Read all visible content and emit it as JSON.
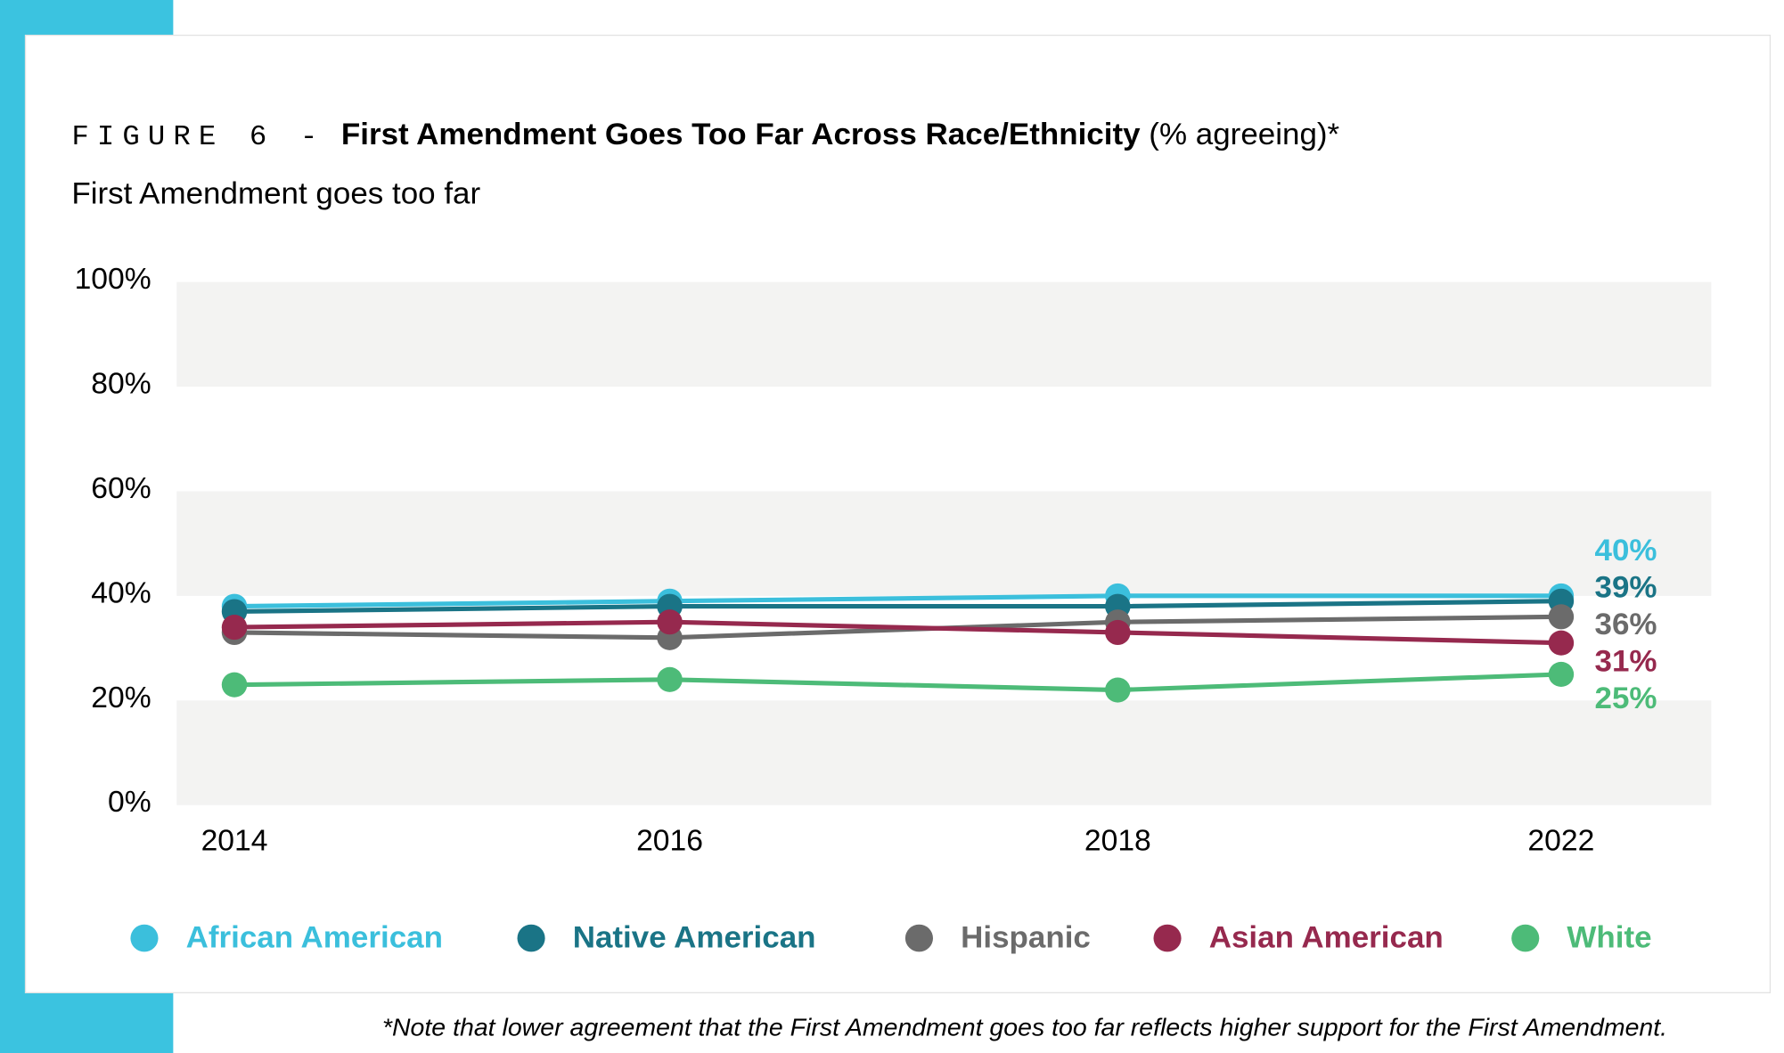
{
  "chart_data": {
    "type": "line",
    "figure_label": "FIGURE 6 -",
    "title": "First Amendment Goes Too Far Across Race/Ethnicity",
    "title_suffix": "(% agreeing)*",
    "subtitle": "First Amendment goes too far",
    "note": "*Note that lower agreement that the First Amendment goes too far reflects higher support for the First Amendment.",
    "categories": [
      "2014",
      "2016",
      "2018",
      "2022"
    ],
    "ylim": [
      0,
      100
    ],
    "yticks": [
      {
        "value": 0,
        "label": "0%"
      },
      {
        "value": 20,
        "label": "20%"
      },
      {
        "value": 40,
        "label": "40%"
      },
      {
        "value": 60,
        "label": "60%"
      },
      {
        "value": 80,
        "label": "80%"
      },
      {
        "value": 100,
        "label": "100%"
      }
    ],
    "series": [
      {
        "name": "African American",
        "color": "#3bbfdc",
        "values": [
          38,
          39,
          40,
          40
        ],
        "value_labels": [
          null,
          null,
          null,
          "40%"
        ]
      },
      {
        "name": "Native American",
        "color": "#1a7486",
        "values": [
          37,
          38,
          38,
          39
        ],
        "value_labels": [
          null,
          null,
          null,
          "39%"
        ]
      },
      {
        "name": "Hispanic",
        "color": "#6b6b6b",
        "values": [
          33,
          32,
          35,
          36
        ],
        "value_labels": [
          null,
          null,
          null,
          "36%"
        ]
      },
      {
        "name": "Asian American",
        "color": "#96294e",
        "values": [
          34,
          35,
          33,
          31
        ],
        "value_labels": [
          null,
          null,
          null,
          "31%"
        ]
      },
      {
        "name": "White",
        "color": "#4dbb78",
        "values": [
          23,
          24,
          22,
          25
        ],
        "value_labels": [
          null,
          null,
          null,
          "25%"
        ]
      }
    ]
  }
}
